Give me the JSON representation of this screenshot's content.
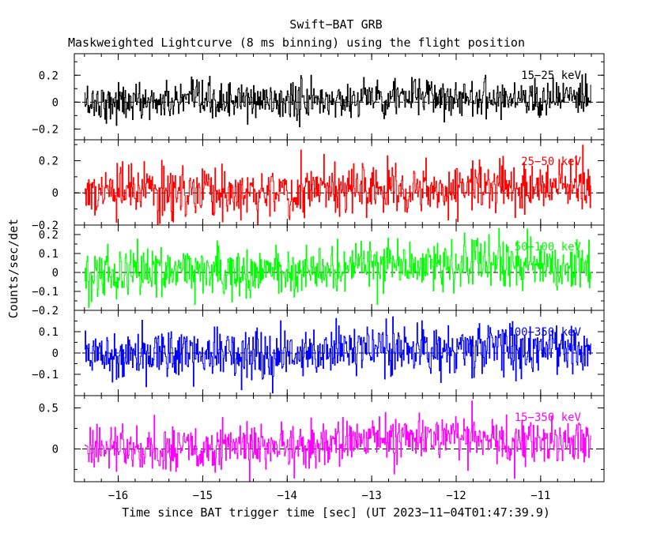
{
  "chart_data": {
    "type": "line",
    "title": "Swift−BAT GRB",
    "subtitle": "Maskweighted Lightcurve (8 ms binning) using the flight position",
    "xlabel": "Time since BAT trigger time [sec] (UT 2023−11−04T01:47:39.9)",
    "ylabel": "Counts/sec/det",
    "xlim": [
      -16.52,
      -10.25
    ],
    "xticks": [
      -16,
      -15,
      -14,
      -13,
      -12,
      -11
    ],
    "x_tick_labels": [
      "−16",
      "−15",
      "−14",
      "−13",
      "−12",
      "−11"
    ],
    "x_range_data": [
      -16.4,
      -10.4
    ],
    "bin_width_sec": 0.008,
    "grid": false,
    "series": [
      {
        "name": "15−25 keV",
        "color": "#000000",
        "ylim": [
          -0.28,
          0.36
        ],
        "yticks": [
          -0.2,
          0,
          0.2
        ],
        "ytick_labels": [
          "−0.2",
          "0",
          "0.2"
        ],
        "mean_level": [
          [
            -16.4,
            0.0
          ],
          [
            -13.4,
            0.01
          ],
          [
            -13.0,
            0.04
          ],
          [
            -11.5,
            0.035
          ],
          [
            -10.4,
            0.03
          ]
        ],
        "noise_sigma": 0.07
      },
      {
        "name": "25−50 keV",
        "color": "#ff0000",
        "ylim": [
          -0.2,
          0.33
        ],
        "yticks": [
          -0.2,
          0,
          0.2
        ],
        "ytick_labels": [
          "−0.2",
          "0",
          "0.2"
        ],
        "mean_level": [
          [
            -16.4,
            0.0
          ],
          [
            -13.4,
            0.01
          ],
          [
            -13.0,
            0.04
          ],
          [
            -11.5,
            0.04
          ],
          [
            -10.4,
            0.03
          ]
        ],
        "noise_sigma": 0.08
      },
      {
        "name": "50−100 keV",
        "color": "#00ff00",
        "ylim": [
          -0.2,
          0.25
        ],
        "yticks": [
          -0.2,
          -0.1,
          0,
          0.1,
          0.2
        ],
        "ytick_labels": [
          "−0.2",
          "−0.1",
          "0",
          "0.1",
          "0.2"
        ],
        "mean_level": [
          [
            -16.4,
            0.0
          ],
          [
            -13.4,
            0.01
          ],
          [
            -13.0,
            0.05
          ],
          [
            -11.5,
            0.04
          ],
          [
            -10.4,
            0.03
          ]
        ],
        "noise_sigma": 0.065
      },
      {
        "name": "100−350 keV",
        "color": "#0000ff",
        "ylim": [
          -0.2,
          0.2
        ],
        "yticks": [
          -0.1,
          0,
          0.1
        ],
        "ytick_labels": [
          "−0.1",
          "0",
          "0.1"
        ],
        "mean_level": [
          [
            -16.4,
            0.0
          ],
          [
            -13.4,
            0.005
          ],
          [
            -13.0,
            0.02
          ],
          [
            -11.5,
            0.02
          ],
          [
            -10.4,
            0.015
          ]
        ],
        "noise_sigma": 0.06
      },
      {
        "name": "15−350 keV",
        "color": "#ff00ff",
        "ylim": [
          -0.4,
          0.65
        ],
        "yticks": [
          0,
          0.5
        ],
        "ytick_labels": [
          "0",
          "0.5"
        ],
        "mean_level": [
          [
            -16.4,
            0.0
          ],
          [
            -13.4,
            0.03
          ],
          [
            -13.0,
            0.15
          ],
          [
            -11.5,
            0.12
          ],
          [
            -10.4,
            0.1
          ]
        ],
        "noise_sigma": 0.14
      }
    ]
  }
}
